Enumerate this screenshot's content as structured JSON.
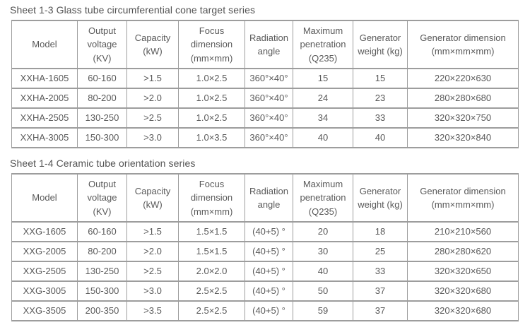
{
  "page": {
    "background_color": "#ffffff",
    "text_color": "#595959",
    "border_color": "#9d9d9d"
  },
  "tables": [
    {
      "title": "Sheet 1-3 Glass tube circumferential cone target series",
      "columns": [
        "Model",
        "Output voltage (KV)",
        "Capacity (kW)",
        "Focus dimension (mm×mm)",
        "Radiation angle",
        "Maximum penetration (Q235)",
        "Generator weight (kg)",
        "Generator dimension (mm×mm×mm)"
      ],
      "rows": [
        [
          "XXHA-1605",
          "60-160",
          ">1.5",
          "1.0×2.5",
          "360°×40°",
          "15",
          "15",
          "220×220×630"
        ],
        [
          "XXHA-2005",
          "80-200",
          ">2.0",
          "1.0×2.5",
          "360°×40°",
          "24",
          "23",
          "280×280×680"
        ],
        [
          "XXHA-2505",
          "130-250",
          ">2.5",
          "1.0×2.5",
          "360°×40°",
          "34",
          "33",
          "320×320×750"
        ],
        [
          "XXHA-3005",
          "150-300",
          ">3.0",
          "1.0×3.5",
          "360°×40°",
          "40",
          "40",
          "320×320×840"
        ]
      ]
    },
    {
      "title": "Sheet 1-4 Ceramic tube orientation series",
      "columns": [
        "Model",
        "Output voltage (KV)",
        "Capacity (kW)",
        "Focus dimension (mm×mm)",
        "Radiation angle",
        "Maximum penetration (Q235)",
        "Generator weight (kg)",
        "Generator dimension (mm×mm×mm)"
      ],
      "rows": [
        [
          "XXG-1605",
          "60-160",
          ">1.5",
          "1.5×1.5",
          "(40+5) °",
          "20",
          "18",
          "210×210×560"
        ],
        [
          "XXG-2005",
          "80-200",
          ">2.0",
          "1.5×1.5",
          "(40+5) °",
          "30",
          "25",
          "280×280×620"
        ],
        [
          "XXG-2505",
          "130-250",
          ">2.5",
          "2.0×2.0",
          "(40+5) °",
          "40",
          "33",
          "320×320×650"
        ],
        [
          "XXG-3005",
          "150-300",
          ">3.0",
          "2.5×2.5",
          "(40+5) °",
          "50",
          "37",
          "320×320×680"
        ],
        [
          "XXG-3505",
          "200-350",
          ">3.5",
          "2.5×2.5",
          "(40+5) °",
          "59",
          "37",
          "320×320×680"
        ]
      ]
    }
  ]
}
